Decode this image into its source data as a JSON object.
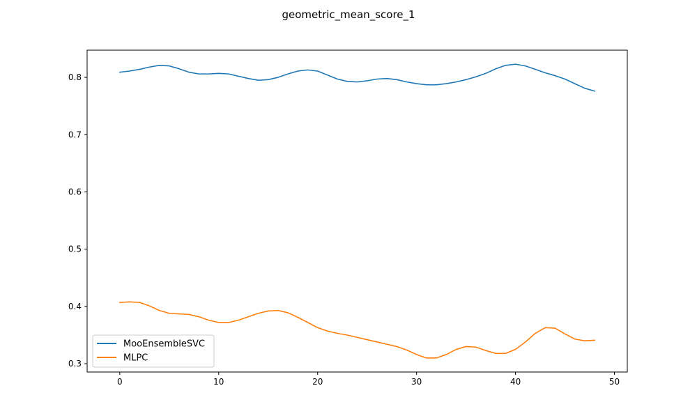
{
  "chart_data": {
    "type": "line",
    "title": "geometric_mean_score_1",
    "xlabel": "",
    "ylabel": "",
    "xlim": [
      -3.3,
      51.3
    ],
    "ylim": [
      0.2855,
      0.8475
    ],
    "xticks": [
      0,
      10,
      20,
      30,
      40,
      50
    ],
    "xtick_labels": [
      "0",
      "10",
      "20",
      "30",
      "40",
      "50"
    ],
    "yticks": [
      0.3,
      0.4,
      0.5,
      0.6,
      0.7,
      0.8
    ],
    "ytick_labels": [
      "0.3",
      "0.4",
      "0.5",
      "0.6",
      "0.7",
      "0.8"
    ],
    "grid": false,
    "legend_position": "lower-left",
    "series": [
      {
        "name": "MooEnsembleSVC",
        "color": "#1f77b4",
        "x": [
          0,
          1,
          2,
          3,
          4,
          5,
          6,
          7,
          8,
          9,
          10,
          11,
          12,
          13,
          14,
          15,
          16,
          17,
          18,
          19,
          20,
          21,
          22,
          23,
          24,
          25,
          26,
          27,
          28,
          29,
          30,
          31,
          32,
          33,
          34,
          35,
          36,
          37,
          38,
          39,
          40,
          41,
          42,
          43,
          44,
          45,
          46,
          47,
          48
        ],
        "values": [
          0.809,
          0.811,
          0.814,
          0.818,
          0.821,
          0.82,
          0.815,
          0.809,
          0.806,
          0.806,
          0.807,
          0.806,
          0.802,
          0.798,
          0.795,
          0.796,
          0.8,
          0.806,
          0.811,
          0.813,
          0.811,
          0.804,
          0.797,
          0.793,
          0.792,
          0.794,
          0.797,
          0.798,
          0.796,
          0.792,
          0.789,
          0.787,
          0.787,
          0.789,
          0.792,
          0.796,
          0.801,
          0.807,
          0.815,
          0.821,
          0.823,
          0.82,
          0.814,
          0.808,
          0.803,
          0.797,
          0.789,
          0.781,
          0.776
        ]
      },
      {
        "name": "MLPC",
        "color": "#ff7f0e",
        "x": [
          0,
          1,
          2,
          3,
          4,
          5,
          6,
          7,
          8,
          9,
          10,
          11,
          12,
          13,
          14,
          15,
          16,
          17,
          18,
          19,
          20,
          21,
          22,
          23,
          24,
          25,
          26,
          27,
          28,
          29,
          30,
          31,
          32,
          33,
          34,
          35,
          36,
          37,
          38,
          39,
          40,
          41,
          42,
          43,
          44,
          45,
          46,
          47,
          48
        ],
        "values": [
          0.407,
          0.408,
          0.407,
          0.401,
          0.393,
          0.388,
          0.387,
          0.386,
          0.382,
          0.376,
          0.372,
          0.372,
          0.376,
          0.382,
          0.388,
          0.392,
          0.393,
          0.389,
          0.381,
          0.372,
          0.363,
          0.357,
          0.353,
          0.35,
          0.346,
          0.342,
          0.338,
          0.334,
          0.33,
          0.324,
          0.316,
          0.31,
          0.31,
          0.316,
          0.325,
          0.33,
          0.329,
          0.323,
          0.318,
          0.318,
          0.325,
          0.338,
          0.353,
          0.363,
          0.362,
          0.352,
          0.343,
          0.34,
          0.341
        ]
      }
    ]
  }
}
